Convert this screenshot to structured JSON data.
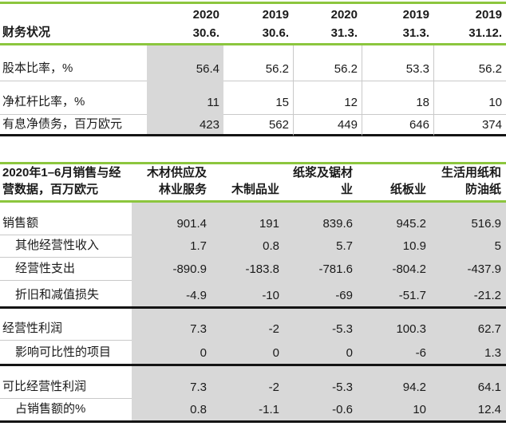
{
  "colors": {
    "accent_green": "#8CC63E",
    "cell_gray": "#D8D8D8",
    "thin_line": "#C9C9C9",
    "heavy_line": "#141414",
    "text": "#1A1A1A"
  },
  "t1": {
    "row_header": "财务状况",
    "columns": [
      {
        "year": "2020",
        "date": "30.6."
      },
      {
        "year": "2019",
        "date": "30.6."
      },
      {
        "year": "2020",
        "date": "31.3."
      },
      {
        "year": "2019",
        "date": "31.3."
      },
      {
        "year": "2019",
        "date": "31.12."
      }
    ],
    "rows": [
      {
        "label": "股本比率，%",
        "values": [
          "56.4",
          "56.2",
          "56.2",
          "53.3",
          "56.2"
        ]
      },
      {
        "label": "净杠杆比率，%",
        "values": [
          "11",
          "15",
          "12",
          "18",
          "10"
        ]
      },
      {
        "label": "有息净债务，百万欧元",
        "values": [
          "423",
          "562",
          "449",
          "646",
          "374"
        ]
      }
    ]
  },
  "t2": {
    "title_lines": [
      "2020年1–6月销售与经",
      "营数据，百万欧元"
    ],
    "columns": [
      {
        "lines": [
          "木材供应及",
          "林业服务"
        ]
      },
      {
        "lines": [
          "木制品业"
        ]
      },
      {
        "lines": [
          "纸浆及锯材",
          "业"
        ]
      },
      {
        "lines": [
          "纸板业"
        ]
      },
      {
        "lines": [
          "生活用纸和",
          "防油纸"
        ]
      }
    ],
    "rows": [
      {
        "label": "销售额",
        "values": [
          "901.4",
          "191",
          "839.6",
          "945.2",
          "516.9"
        ]
      },
      {
        "label": "其他经营性收入",
        "values": [
          "1.7",
          "0.8",
          "5.7",
          "10.9",
          "5"
        ]
      },
      {
        "label": "经营性支出",
        "values": [
          "-890.9",
          "-183.8",
          "-781.6",
          "-804.2",
          "-437.9"
        ]
      },
      {
        "label": "折旧和减值损失",
        "values": [
          "-4.9",
          "-10",
          "-69",
          "-51.7",
          "-21.2"
        ]
      },
      {
        "label": "经营性利润",
        "values": [
          "7.3",
          "-2",
          "-5.3",
          "100.3",
          "62.7"
        ]
      },
      {
        "label": "影响可比性的项目",
        "values": [
          "0",
          "0",
          "0",
          "-6",
          "1.3"
        ]
      },
      {
        "label": "可比经营性利润",
        "values": [
          "7.3",
          "-2",
          "-5.3",
          "94.2",
          "64.1"
        ]
      },
      {
        "label": "占销售额的%",
        "values": [
          "0.8",
          "-1.1",
          "-0.6",
          "10",
          "12.4"
        ]
      }
    ]
  }
}
